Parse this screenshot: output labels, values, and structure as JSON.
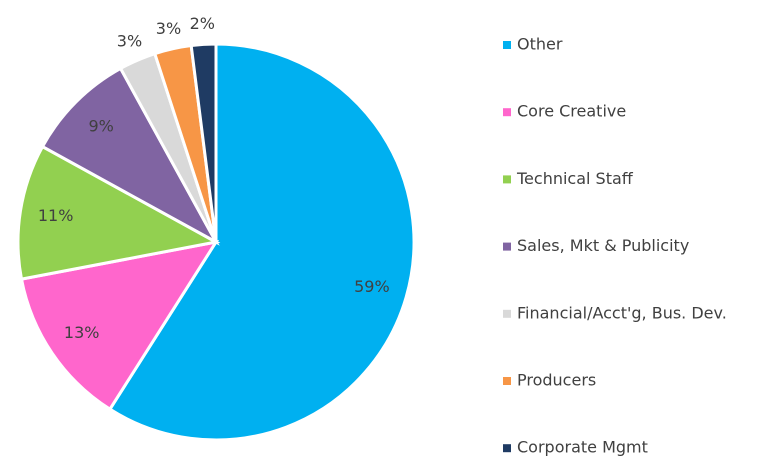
{
  "chart_data": {
    "type": "pie",
    "categories": [
      "Other",
      "Core Creative",
      "Technical Staff",
      "Sales, Mkt & Publicity",
      "Financial/Acct'g, Bus. Dev.",
      "Producers",
      "Corporate Mgmt"
    ],
    "values": [
      59,
      13,
      11,
      9,
      3,
      3,
      2
    ],
    "value_labels": [
      "59%",
      "13%",
      "11%",
      "9%",
      "3%",
      "3%",
      "2%"
    ],
    "colors": [
      "#00b0f0",
      "#ff66cc",
      "#92d050",
      "#8064a2",
      "#d9d9d9",
      "#f79646",
      "#1f3b63"
    ],
    "legend": "right"
  }
}
